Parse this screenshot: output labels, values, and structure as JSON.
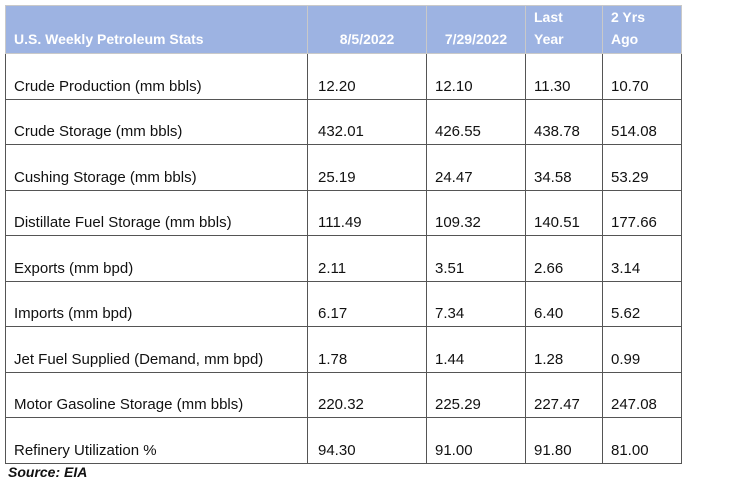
{
  "table": {
    "headers": {
      "metric": "U.S. Weekly Petroleum Stats",
      "date1": "8/5/2022",
      "date2": "7/29/2022",
      "last_year_line1": "Last",
      "last_year_line2": "Year",
      "two_years_line1": "2 Yrs",
      "two_years_line2": "Ago"
    },
    "rows": [
      {
        "metric": "Crude Production (mm bbls)",
        "v1": "12.20",
        "v2": "12.10",
        "v3": "11.30",
        "v4": "10.70"
      },
      {
        "metric": "Crude Storage (mm bbls)",
        "v1": "432.01",
        "v2": "426.55",
        "v3": "438.78",
        "v4": "514.08"
      },
      {
        "metric": "Cushing Storage (mm bbls)",
        "v1": "25.19",
        "v2": "24.47",
        "v3": "34.58",
        "v4": "53.29"
      },
      {
        "metric": "Distillate Fuel Storage (mm bbls)",
        "v1": "111.49",
        "v2": "109.32",
        "v3": "140.51",
        "v4": "177.66"
      },
      {
        "metric": "Exports (mm bpd)",
        "v1": "2.11",
        "v2": "3.51",
        "v3": "2.66",
        "v4": "3.14"
      },
      {
        "metric": "Imports (mm bpd)",
        "v1": "6.17",
        "v2": "7.34",
        "v3": "6.40",
        "v4": "5.62"
      },
      {
        "metric": "Jet Fuel Supplied (Demand, mm bpd)",
        "v1": "1.78",
        "v2": "1.44",
        "v3": "1.28",
        "v4": "0.99"
      },
      {
        "metric": "Motor Gasoline Storage (mm bbls)",
        "v1": "220.32",
        "v2": "225.29",
        "v3": "227.47",
        "v4": "247.08"
      },
      {
        "metric": "Refinery Utilization %",
        "v1": "94.30",
        "v2": "91.00",
        "v3": "91.80",
        "v4": "81.00"
      }
    ]
  },
  "source": "Source: EIA",
  "colors": {
    "header_background": "#9db3e2",
    "header_text": "#ffffff"
  }
}
